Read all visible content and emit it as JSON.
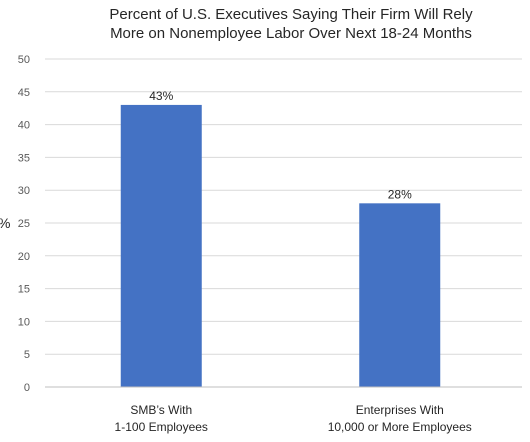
{
  "chart_data": {
    "type": "bar",
    "title_lines": [
      "Percent of U.S. Executives Saying Their Firm Will Rely",
      "More on Nonemployee Labor Over Next 18-24 Months"
    ],
    "ylabel": "%",
    "xlabel": "",
    "ylim": [
      0,
      50
    ],
    "yticks": [
      "0",
      "5",
      "10",
      "15",
      "20",
      "25",
      "30",
      "35",
      "40",
      "45",
      "50"
    ],
    "categories": [
      [
        "SMB’s With",
        "1-100 Employees"
      ],
      [
        "Enterprises With",
        "10,000 or More Employees"
      ]
    ],
    "values": [
      43,
      28
    ],
    "data_labels": [
      "43%",
      "28%"
    ],
    "grid": true,
    "legend": "none",
    "colors": {
      "bar": "#4472c4",
      "grid": "#d9d9d9",
      "axis": "#bfbfbf"
    }
  }
}
